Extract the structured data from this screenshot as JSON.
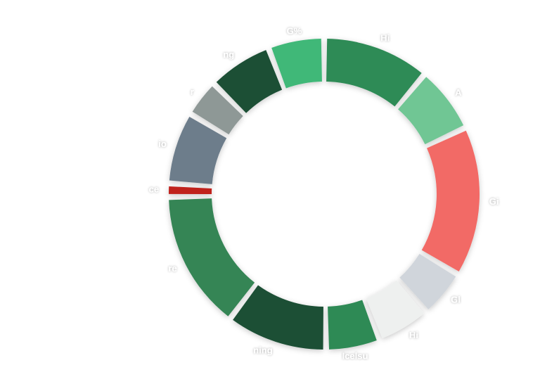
{
  "chart_data": {
    "type": "donut",
    "categories": [
      "Hi",
      "A",
      "Gi",
      "Gl",
      "Hi",
      "Icelsu",
      "ning",
      "re",
      "ce",
      "io",
      "r",
      "ng",
      "G%"
    ],
    "values": [
      11.1,
      6.9,
      15.6,
      5,
      5.6,
      5.6,
      10.5,
      14.4,
      1.4,
      7.5,
      3.9,
      6.7,
      5.8
    ],
    "colors": [
      "#2e8b57",
      "#6fc694",
      "#f26b66",
      "#d0d5db",
      "#eef0ef",
      "#2f8a55",
      "#1b4f35",
      "#358555",
      "#c0201e",
      "#6d7d8b",
      "#8e9896",
      "#1b4f35",
      "#3fb878"
    ]
  }
}
